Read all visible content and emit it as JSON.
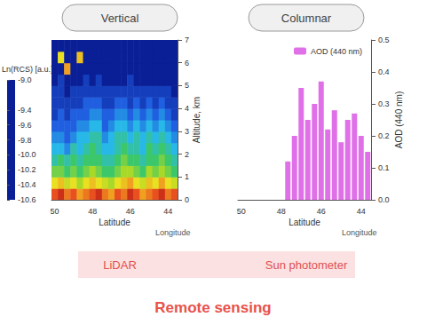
{
  "chart_data": [
    {
      "type": "heatmap",
      "title": "Vertical",
      "x_label": "Latitude",
      "y_label": "Altitude, km",
      "z_label": "Longitude",
      "categories": [
        "50",
        null,
        null,
        null,
        null,
        null,
        "48",
        null,
        null,
        null,
        null,
        null,
        "46",
        null,
        null,
        null,
        null,
        null,
        "44",
        null
      ],
      "y_bins": [
        0,
        0.5,
        1,
        1.5,
        2,
        2.5,
        3,
        3.5,
        4,
        4.5,
        5,
        5.5,
        6,
        6.5,
        7
      ],
      "cells": [
        [
          -9.2,
          -9.1,
          -9.3,
          -9.2,
          -9.4,
          -9.3,
          -9.2,
          -9.1,
          -9.3,
          -9.4,
          -9.2,
          -9.3,
          -9.1,
          -9.2,
          -9.4,
          -9.3,
          -9.2,
          -9.1,
          -9.3,
          -9.2
        ],
        [
          -9.6,
          -9.5,
          -9.7,
          -9.6,
          -9.8,
          -9.6,
          -9.5,
          -9.6,
          -9.7,
          -9.8,
          -9.6,
          -9.5,
          -9.4,
          -9.6,
          -9.7,
          -9.5,
          -9.6,
          -9.4,
          -9.6,
          -9.7
        ],
        [
          -9.9,
          -9.9,
          -10.0,
          -9.9,
          -10.0,
          -9.9,
          -9.8,
          -9.9,
          -10.0,
          -10.0,
          -9.9,
          -9.8,
          -9.8,
          -9.9,
          -10.0,
          -9.8,
          -9.9,
          -9.8,
          -9.9,
          -10.0
        ],
        [
          -10.1,
          -10.0,
          -10.1,
          -10.0,
          -10.1,
          -10.0,
          -10.0,
          -10.0,
          -10.1,
          -10.1,
          -10.0,
          -9.9,
          -10.0,
          -10.0,
          -10.1,
          -10.0,
          -10.0,
          -9.9,
          -10.0,
          -10.1
        ],
        [
          -10.2,
          -10.2,
          -10.3,
          -10.1,
          -10.2,
          -10.1,
          -10.0,
          -10.1,
          -10.2,
          -10.2,
          -10.1,
          -10.0,
          -10.1,
          -10.1,
          -10.2,
          -10.0,
          -10.1,
          -10.0,
          -10.1,
          -10.2
        ],
        [
          -10.3,
          -10.3,
          -10.4,
          -10.3,
          -10.2,
          -10.2,
          -10.1,
          -10.1,
          -10.3,
          -10.2,
          -10.1,
          -10.1,
          -10.2,
          -10.1,
          -10.2,
          -10.1,
          -10.2,
          -10.1,
          -10.2,
          -10.3
        ],
        [
          -10.4,
          -10.4,
          -10.4,
          -10.4,
          -10.3,
          -10.3,
          -10.2,
          -10.2,
          -10.4,
          -10.3,
          -10.2,
          -10.2,
          -10.3,
          -10.2,
          -10.3,
          -10.2,
          -10.3,
          -10.2,
          -10.3,
          -10.4
        ],
        [
          -10.5,
          -10.4,
          -10.5,
          -10.4,
          -10.4,
          -10.4,
          -10.3,
          -10.3,
          -10.4,
          -10.4,
          -10.3,
          -10.3,
          -10.4,
          -10.3,
          -10.4,
          -10.3,
          -10.4,
          -10.3,
          -10.4,
          -10.5
        ],
        [
          -10.5,
          -10.5,
          -10.5,
          -10.5,
          -10.5,
          -10.4,
          -10.4,
          -10.4,
          -10.5,
          -10.5,
          -10.4,
          -10.4,
          -10.5,
          -10.4,
          -10.5,
          -10.4,
          -10.5,
          -10.4,
          -10.5,
          -10.5
        ],
        [
          -10.5,
          -10.5,
          -10.6,
          -10.5,
          -10.5,
          -10.5,
          -10.5,
          -10.5,
          -10.5,
          -10.5,
          -10.5,
          -10.5,
          -10.5,
          -10.5,
          -10.5,
          -10.5,
          -10.5,
          -10.5,
          -10.5,
          -10.6
        ],
        [
          -10.6,
          -10.5,
          -10.6,
          -10.6,
          -10.6,
          -10.5,
          -10.6,
          -10.5,
          -10.6,
          -10.6,
          -10.6,
          -10.6,
          -10.5,
          -10.6,
          -10.6,
          -10.6,
          -10.6,
          -10.6,
          -10.6,
          -10.6
        ],
        [
          -10.6,
          -10.6,
          -9.4,
          -10.6,
          -10.6,
          -10.6,
          -10.6,
          -10.6,
          -10.6,
          -10.6,
          -10.6,
          -10.6,
          -10.6,
          -10.6,
          -10.6,
          -10.6,
          -10.6,
          -10.6,
          -10.6,
          -10.6
        ],
        [
          -10.6,
          -9.6,
          -10.6,
          -10.6,
          -9.5,
          -10.6,
          -10.6,
          -10.6,
          -10.6,
          -10.6,
          -10.6,
          -10.6,
          -10.6,
          -10.6,
          -10.6,
          -10.6,
          -10.6,
          -10.6,
          -10.6,
          -10.6
        ],
        [
          -10.6,
          -10.6,
          -10.6,
          -10.6,
          -10.6,
          -10.6,
          -10.6,
          -10.6,
          -10.6,
          -10.6,
          -10.6,
          -10.6,
          -10.6,
          -10.6,
          -10.6,
          -10.6,
          -10.6,
          -10.6,
          -10.6,
          -10.6
        ]
      ],
      "ylim": [
        0,
        7
      ],
      "yticks": [
        0,
        1,
        2,
        3,
        4,
        5,
        6,
        7
      ],
      "colorbar": {
        "label": "Ln(RCS) [a.u.]",
        "range": [
          -10.6,
          -9
        ],
        "ticks": [
          -10.6,
          -10.4,
          -10.2,
          {
            "value": -10,
            "label": "-10.0"
          },
          -9.8,
          -9.6,
          -9.4,
          {
            "value": -9,
            "label": "-9.0"
          }
        ]
      }
    },
    {
      "type": "bar",
      "title": "Columnar",
      "x_label": "Latitude",
      "y_label": "AOD (440 nm)",
      "z_label": "Longitude",
      "categories": [
        "50",
        null,
        null,
        null,
        null,
        null,
        "48",
        null,
        null,
        null,
        null,
        null,
        "46",
        null,
        null,
        null,
        null,
        null,
        "44",
        null
      ],
      "series": [
        {
          "name": "AOD (440 nm)",
          "color": "#e070e8",
          "values": [
            null,
            null,
            null,
            null,
            null,
            null,
            null,
            0.12,
            0.2,
            0.35,
            0.25,
            0.3,
            0.37,
            0.22,
            0.28,
            0.18,
            0.25,
            0.27,
            0.2,
            0.15
          ]
        }
      ],
      "ylim": [
        0,
        0.5
      ],
      "yticks": [
        {
          "value": 0,
          "label": "0.0"
        },
        0.1,
        0.2,
        0.3,
        0.4,
        0.5
      ],
      "legend": "upper right"
    }
  ],
  "captions": {
    "left": "LiDAR",
    "right": "Sun photometer",
    "footer": "Remote sensing"
  }
}
